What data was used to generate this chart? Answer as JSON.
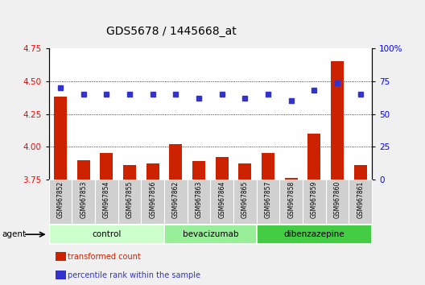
{
  "title": "GDS5678 / 1445668_at",
  "samples": [
    "GSM967852",
    "GSM967853",
    "GSM967854",
    "GSM967855",
    "GSM967856",
    "GSM967862",
    "GSM967863",
    "GSM967864",
    "GSM967865",
    "GSM967857",
    "GSM967858",
    "GSM967859",
    "GSM967860",
    "GSM967861"
  ],
  "transformed_count": [
    4.38,
    3.9,
    3.95,
    3.86,
    3.87,
    4.02,
    3.89,
    3.92,
    3.87,
    3.95,
    3.76,
    4.1,
    4.65,
    3.86
  ],
  "percentile_rank": [
    70,
    65,
    65,
    65,
    65,
    65,
    62,
    65,
    62,
    65,
    60,
    68,
    74,
    65
  ],
  "groups": [
    {
      "name": "control",
      "start": 0,
      "end": 5
    },
    {
      "name": "bevacizumab",
      "start": 5,
      "end": 9
    },
    {
      "name": "dibenzazepine",
      "start": 9,
      "end": 14
    }
  ],
  "group_colors": [
    "#ccffcc",
    "#99ee99",
    "#44cc44"
  ],
  "ylim_left": [
    3.75,
    4.75
  ],
  "ylim_right": [
    0,
    100
  ],
  "yticks_left": [
    3.75,
    4.0,
    4.25,
    4.5,
    4.75
  ],
  "yticks_right": [
    0,
    25,
    50,
    75,
    100
  ],
  "ytick_right_labels": [
    "0",
    "25",
    "50",
    "75",
    "100%"
  ],
  "bar_color": "#cc2200",
  "dot_color": "#3333cc",
  "background_color": "#f0f0f0",
  "plot_bg": "#ffffff",
  "sample_bg": "#d0d0d0",
  "bar_width": 0.55,
  "legend_items": [
    {
      "label": "transformed count",
      "color": "#cc2200"
    },
    {
      "label": "percentile rank within the sample",
      "color": "#3333cc"
    }
  ]
}
